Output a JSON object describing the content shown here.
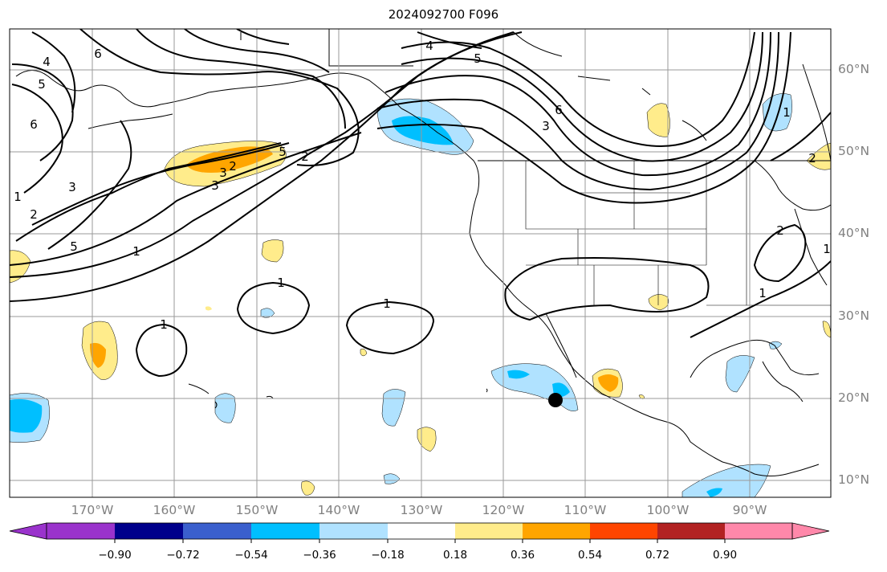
{
  "title": "2024092700 F096",
  "lat_labels": [
    "60°N",
    "50°N",
    "40°N",
    "30°N",
    "20°N",
    "10°N"
  ],
  "lon_labels": [
    "170°W",
    "160°W",
    "150°W",
    "140°W",
    "130°W",
    "120°W",
    "110°W",
    "100°W",
    "90°W"
  ],
  "colorbar": {
    "ticks": [
      "−0.90",
      "−0.72",
      "−0.54",
      "−0.36",
      "−0.18",
      "0.18",
      "0.36",
      "0.54",
      "0.72",
      "0.90"
    ],
    "colors": [
      "#9a33cc",
      "#00008b",
      "#3a5fcd",
      "#00bfff",
      "#b0e2ff",
      "#ffffff",
      "#ffec8b",
      "#ffa500",
      "#ff4500",
      "#b22222",
      "#ff88aa"
    ]
  },
  "contour_labels": [
    "5",
    "6",
    "3",
    "2",
    "1",
    "4",
    "5",
    "6",
    "3",
    "2",
    "1",
    "1",
    "1",
    "1",
    "4",
    "5",
    "2",
    "3",
    "2",
    "1",
    "1",
    "5",
    "6",
    "3",
    "2",
    "1"
  ],
  "map": {
    "projection": "Plate Carree",
    "extent_lon": [
      -180,
      -80
    ],
    "extent_lat": [
      8,
      65
    ],
    "marker": {
      "lon": -113.5,
      "lat": 19.8,
      "color": "#000000"
    }
  }
}
